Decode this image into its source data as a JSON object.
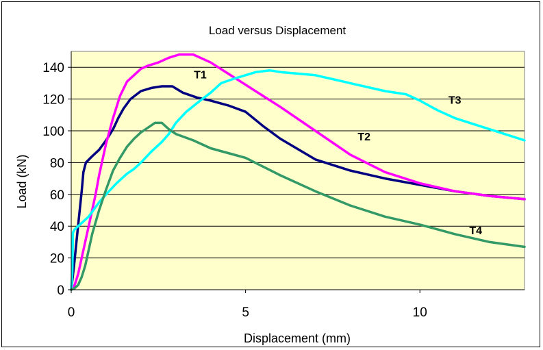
{
  "chart_data": {
    "type": "line",
    "title": "Load versus Displacement",
    "xlabel": "Displacement (mm)",
    "ylabel": "Load (kN)",
    "xlim": [
      0,
      13
    ],
    "ylim": [
      0,
      150
    ],
    "xticks": [
      0,
      5,
      10
    ],
    "yticks": [
      0,
      20,
      40,
      60,
      80,
      100,
      120,
      140
    ],
    "grid": "horizontal",
    "plot_background": "#FFFFCC",
    "series": [
      {
        "name": "T1",
        "color": "#000080",
        "label_at": [
          3.7,
          133
        ],
        "points": [
          [
            0,
            0
          ],
          [
            0.08,
            15
          ],
          [
            0.15,
            30
          ],
          [
            0.22,
            45
          ],
          [
            0.3,
            62
          ],
          [
            0.35,
            74
          ],
          [
            0.42,
            80
          ],
          [
            0.6,
            84
          ],
          [
            0.8,
            88
          ],
          [
            1.0,
            94
          ],
          [
            1.2,
            101
          ],
          [
            1.35,
            108
          ],
          [
            1.5,
            114
          ],
          [
            1.7,
            120
          ],
          [
            2.0,
            125
          ],
          [
            2.3,
            127
          ],
          [
            2.6,
            128
          ],
          [
            2.9,
            128
          ],
          [
            3.2,
            124
          ],
          [
            3.6,
            121
          ],
          [
            4.0,
            119
          ],
          [
            4.5,
            116
          ],
          [
            5.0,
            112
          ],
          [
            5.5,
            103
          ],
          [
            6.0,
            95
          ],
          [
            7.0,
            82
          ],
          [
            8.0,
            75
          ],
          [
            9.0,
            70
          ],
          [
            10.0,
            66
          ],
          [
            11.0,
            62
          ],
          [
            12.0,
            59
          ],
          [
            13.0,
            57
          ]
        ]
      },
      {
        "name": "T2",
        "color": "#FF00FF",
        "label_at": [
          8.4,
          94
        ],
        "points": [
          [
            0,
            0
          ],
          [
            0.1,
            3
          ],
          [
            0.2,
            10
          ],
          [
            0.3,
            20
          ],
          [
            0.4,
            30
          ],
          [
            0.5,
            40
          ],
          [
            0.6,
            50
          ],
          [
            0.7,
            60
          ],
          [
            0.8,
            72
          ],
          [
            0.9,
            82
          ],
          [
            1.0,
            92
          ],
          [
            1.2,
            108
          ],
          [
            1.4,
            122
          ],
          [
            1.6,
            131
          ],
          [
            1.8,
            135
          ],
          [
            2.0,
            139
          ],
          [
            2.2,
            141
          ],
          [
            2.5,
            143
          ],
          [
            2.8,
            146
          ],
          [
            3.1,
            148
          ],
          [
            3.5,
            148
          ],
          [
            4.0,
            143
          ],
          [
            4.5,
            136
          ],
          [
            5.0,
            129
          ],
          [
            6.0,
            115
          ],
          [
            7.0,
            100
          ],
          [
            8.0,
            85
          ],
          [
            9.0,
            74
          ],
          [
            10.0,
            67
          ],
          [
            11.0,
            62
          ],
          [
            12.0,
            59
          ],
          [
            13.0,
            57
          ]
        ]
      },
      {
        "name": "T3",
        "color": "#00FFFF",
        "label_at": [
          11.0,
          117
        ],
        "points": [
          [
            0,
            0
          ],
          [
            0.03,
            10
          ],
          [
            0.05,
            36
          ],
          [
            0.1,
            38
          ],
          [
            0.2,
            40
          ],
          [
            0.3,
            42
          ],
          [
            0.5,
            46
          ],
          [
            0.8,
            55
          ],
          [
            1.0,
            60
          ],
          [
            1.3,
            67
          ],
          [
            1.6,
            73
          ],
          [
            1.8,
            76
          ],
          [
            2.0,
            80
          ],
          [
            2.3,
            87
          ],
          [
            2.6,
            93
          ],
          [
            2.8,
            98
          ],
          [
            3.0,
            105
          ],
          [
            3.3,
            112
          ],
          [
            3.7,
            119
          ],
          [
            4.0,
            124
          ],
          [
            4.3,
            130
          ],
          [
            4.7,
            133
          ],
          [
            5.0,
            135
          ],
          [
            5.3,
            137
          ],
          [
            5.7,
            138
          ],
          [
            6.0,
            137
          ],
          [
            7.0,
            135
          ],
          [
            8.0,
            130
          ],
          [
            9.0,
            125
          ],
          [
            9.6,
            123
          ],
          [
            10.0,
            119
          ],
          [
            10.5,
            113
          ],
          [
            11.0,
            108
          ],
          [
            12.0,
            101
          ],
          [
            13.0,
            94
          ]
        ]
      },
      {
        "name": "T4",
        "color": "#339966",
        "label_at": [
          11.6,
          35
        ],
        "points": [
          [
            0,
            0
          ],
          [
            0.1,
            1
          ],
          [
            0.2,
            3
          ],
          [
            0.3,
            8
          ],
          [
            0.4,
            15
          ],
          [
            0.5,
            25
          ],
          [
            0.6,
            35
          ],
          [
            0.8,
            50
          ],
          [
            1.0,
            63
          ],
          [
            1.2,
            75
          ],
          [
            1.4,
            83
          ],
          [
            1.6,
            90
          ],
          [
            1.8,
            95
          ],
          [
            2.0,
            99
          ],
          [
            2.2,
            102
          ],
          [
            2.4,
            105
          ],
          [
            2.6,
            105
          ],
          [
            2.8,
            101
          ],
          [
            3.0,
            98
          ],
          [
            3.5,
            94
          ],
          [
            4.0,
            89
          ],
          [
            4.5,
            86
          ],
          [
            5.0,
            83
          ],
          [
            6.0,
            72
          ],
          [
            7.0,
            62
          ],
          [
            8.0,
            53
          ],
          [
            9.0,
            46
          ],
          [
            10.0,
            41
          ],
          [
            11.0,
            35
          ],
          [
            12.0,
            30
          ],
          [
            13.0,
            27
          ]
        ]
      }
    ]
  }
}
